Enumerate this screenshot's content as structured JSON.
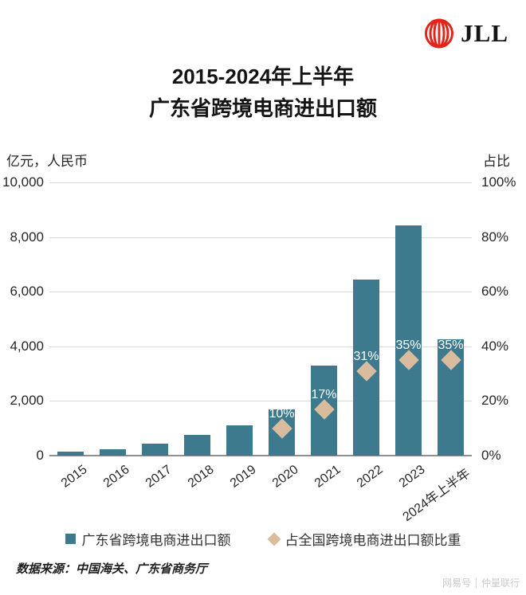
{
  "logo": {
    "text": "JLL"
  },
  "title": {
    "line1": "2015-2024年上半年",
    "line2": "广东省跨境电商进出口额"
  },
  "chart_data": {
    "type": "bar",
    "title": "2015-2024年上半年 广东省跨境电商进出口额",
    "categories": [
      "2015",
      "2016",
      "2017",
      "2018",
      "2019",
      "2020",
      "2021",
      "2022",
      "2023",
      "2024年上半年"
    ],
    "series": [
      {
        "name": "广东省跨境电商进出口额",
        "type": "bar",
        "axis": "left",
        "values": [
          140,
          220,
          430,
          770,
          1100,
          1700,
          3300,
          6450,
          8430,
          4270
        ]
      },
      {
        "name": "占全国跨境电商进出口额比重",
        "type": "scatter-diamond",
        "axis": "right",
        "values": [
          null,
          null,
          null,
          null,
          null,
          10,
          17,
          31,
          35,
          35
        ],
        "labels": [
          "",
          "",
          "",
          "",
          "",
          "10%",
          "17%",
          "31%",
          "35%",
          "35%"
        ]
      }
    ],
    "left_axis": {
      "title": "亿元，人民币",
      "range": [
        0,
        10000
      ],
      "ticks": [
        "0",
        "2,000",
        "4,000",
        "6,000",
        "8,000",
        "10,000"
      ]
    },
    "right_axis": {
      "title": "占比",
      "range": [
        0,
        100
      ],
      "ticks": [
        "0%",
        "20%",
        "40%",
        "60%",
        "80%",
        "100%"
      ]
    },
    "grid": true,
    "legend_position": "bottom"
  },
  "legend": {
    "items": [
      {
        "label": "广东省跨境电商进出口额"
      },
      {
        "label": "占全国跨境电商进出口额比重"
      }
    ]
  },
  "footer": {
    "source": "数据来源：中国海关、广东省商务厅"
  },
  "watermark": {
    "left": "网易号",
    "right": "仲量联行"
  },
  "colors": {
    "bar": "#3e7a8e",
    "diamond": "#d9bc9e",
    "grid": "#d9d9d9",
    "axis_line": "#8f8f8f",
    "text": "#262626",
    "jll_red": "#e1251b"
  }
}
